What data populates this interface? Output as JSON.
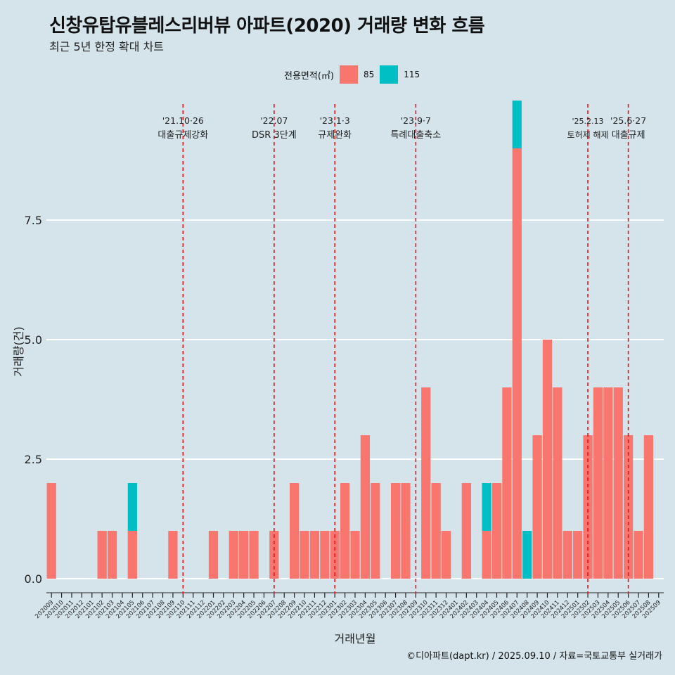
{
  "title": "신창유탑유블레스리버뷰 아파트(2020) 거래량 변화 흐름",
  "subtitle": "최근 5년 한정 확대 차트",
  "caption": "©디아파트(dapt.kr) / 2025.09.10 / 자료=국토교통부 실거래가",
  "legend": {
    "title": "전용면적(㎡)",
    "items": [
      {
        "label": "85",
        "color": "#f8766d"
      },
      {
        "label": "115",
        "color": "#00bfc4"
      }
    ]
  },
  "chart_data": {
    "type": "bar",
    "xlabel": "거래년월",
    "ylabel": "거래량(건)",
    "ylim": [
      -0.4,
      9.5
    ],
    "yticks": [
      0.0,
      2.5,
      5.0,
      7.5
    ],
    "ytick_labels": [
      "0.0",
      "2.5",
      "5.0",
      "7.5"
    ],
    "grid": true,
    "legend_position": "top",
    "categories": [
      "202009",
      "202010",
      "202011",
      "202012",
      "202101",
      "202102",
      "202103",
      "202104",
      "202105",
      "202106",
      "202107",
      "202108",
      "202109",
      "202110",
      "202111",
      "202112",
      "202201",
      "202202",
      "202203",
      "202204",
      "202205",
      "202206",
      "202207",
      "202208",
      "202209",
      "202210",
      "202211",
      "202212",
      "202301",
      "202302",
      "202303",
      "202304",
      "202305",
      "202306",
      "202307",
      "202308",
      "202309",
      "202310",
      "202311",
      "202312",
      "202401",
      "202402",
      "202403",
      "202404",
      "202405",
      "202406",
      "202407",
      "202408",
      "202409",
      "202410",
      "202411",
      "202412",
      "202501",
      "202502",
      "202503",
      "202504",
      "202505",
      "202506",
      "202507",
      "202508",
      "202509"
    ],
    "series": [
      {
        "name": "85",
        "color": "#f8766d",
        "values": [
          2,
          0,
          0,
          0,
          0,
          1,
          1,
          0,
          1,
          0,
          0,
          0,
          1,
          0,
          0,
          0,
          1,
          0,
          1,
          1,
          1,
          0,
          1,
          0,
          2,
          1,
          1,
          1,
          1,
          2,
          1,
          3,
          2,
          0,
          2,
          2,
          0,
          4,
          2,
          1,
          0,
          2,
          0,
          1,
          2,
          4,
          9,
          0,
          3,
          5,
          4,
          1,
          1,
          3,
          4,
          4,
          4,
          3,
          1,
          3,
          0
        ]
      },
      {
        "name": "115",
        "color": "#00bfc4",
        "values": [
          0,
          0,
          0,
          0,
          0,
          0,
          0,
          0,
          1,
          0,
          0,
          0,
          0,
          0,
          0,
          0,
          0,
          0,
          0,
          0,
          0,
          0,
          0,
          0,
          0,
          0,
          0,
          0,
          0,
          0,
          0,
          0,
          0,
          0,
          0,
          0,
          0,
          0,
          0,
          0,
          0,
          0,
          0,
          1,
          0,
          0,
          1,
          1,
          0,
          0,
          0,
          0,
          0,
          0,
          0,
          0,
          0,
          0,
          0,
          0,
          0
        ]
      }
    ],
    "annotations": [
      {
        "category": "202110",
        "date": "'21.10·26",
        "label": "대출규제강화"
      },
      {
        "category": "202207",
        "date": "'22.07",
        "label": "DSR 3단계"
      },
      {
        "category": "202301",
        "date": "'23.1·3",
        "label": "규제완화"
      },
      {
        "category": "202309",
        "date": "'23.9·7",
        "label": "특례대출축소"
      },
      {
        "category": "202502",
        "date": "'25.2.13",
        "label": "토허제 해제"
      },
      {
        "category": "202506",
        "date": "'25.6·27",
        "label": "대출규제"
      }
    ]
  }
}
